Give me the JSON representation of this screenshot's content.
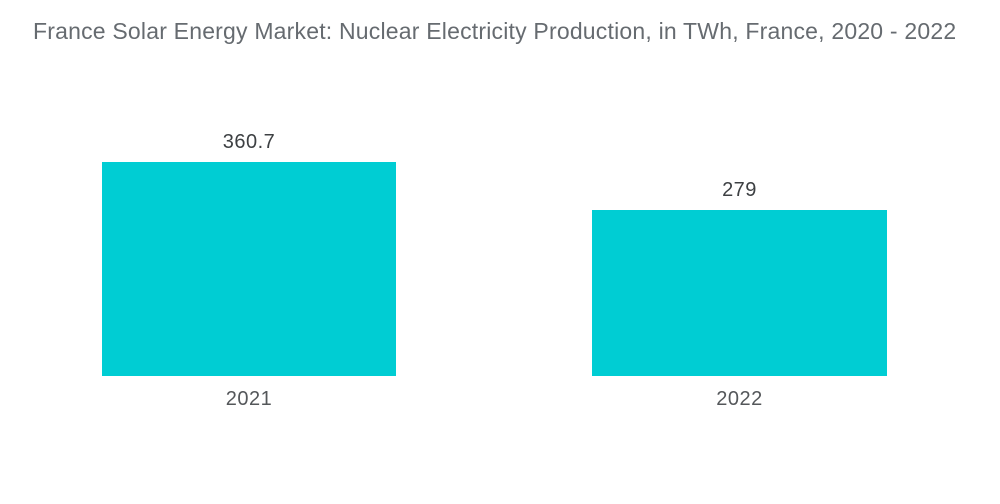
{
  "chart_data": {
    "type": "bar",
    "title": "France Solar Energy Market: Nuclear Electricity Production, in TWh, France, 2020 - 2022",
    "categories": [
      "2021",
      "2022"
    ],
    "values": [
      360.7,
      279
    ],
    "value_labels": [
      "360.7",
      "279"
    ],
    "xlabel": "",
    "ylabel": "",
    "ylim": [
      0,
      380
    ],
    "grid": false,
    "legend": false,
    "bar_color": "#00CDD3",
    "title_color": "#666b70",
    "value_label_color": "#3d4043",
    "category_label_color": "#54575a",
    "background_color": "#ffffff"
  }
}
